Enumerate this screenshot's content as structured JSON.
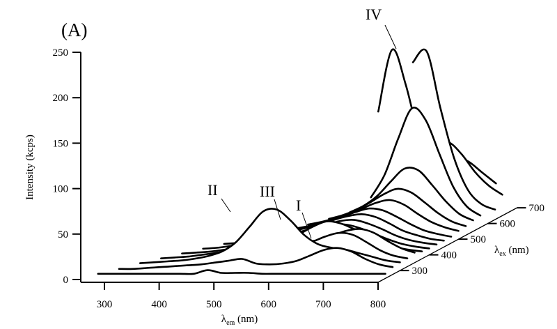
{
  "chart_data": {
    "type": "line",
    "style": "3d-waterfall",
    "panel_label": "(A)",
    "xlabel": {
      "main": "λ",
      "sub": "em",
      "unit": " (nm)"
    },
    "ylabel": "Intensity (kcps)",
    "zlabel": {
      "main": "λ",
      "sub": "ex",
      "unit": " (nm)"
    },
    "xlim": [
      250,
      800
    ],
    "ylim": [
      0,
      250
    ],
    "zlim": [
      225,
      700
    ],
    "xticks": [
      300,
      400,
      500,
      600,
      700,
      800
    ],
    "yticks": [
      0,
      50,
      100,
      150,
      200,
      250
    ],
    "zticks": [
      300,
      400,
      500,
      600,
      700
    ],
    "grid": false,
    "line_color": "#000000",
    "em_step": 25,
    "peak_labels": [
      "I",
      "II",
      "III",
      "IV"
    ],
    "series": [
      {
        "ex": 250,
        "em_start": 275,
        "values": [
          2,
          2,
          2,
          2,
          2,
          2,
          2,
          2,
          6,
          3,
          3,
          3,
          2,
          2,
          2,
          2,
          2,
          2,
          2,
          2,
          2,
          2
        ]
      },
      {
        "ex": 275,
        "em_start": 300,
        "values": [
          3,
          3,
          4,
          5,
          6,
          7,
          8,
          10,
          12,
          14,
          9,
          8,
          9,
          12,
          18,
          24,
          26,
          22,
          14,
          8,
          5
        ]
      },
      {
        "ex": 300,
        "em_start": 325,
        "values": [
          5,
          6,
          7,
          8,
          10,
          13,
          18,
          28,
          45,
          62,
          64,
          52,
          36,
          26,
          22,
          20,
          16,
          12,
          8,
          6
        ]
      },
      {
        "ex": 325,
        "em_start": 350,
        "values": [
          6,
          7,
          8,
          10,
          12,
          15,
          20,
          24,
          25,
          23,
          20,
          24,
          30,
          34,
          32,
          24,
          15,
          9,
          6
        ]
      },
      {
        "ex": 350,
        "em_start": 375,
        "values": [
          7,
          8,
          9,
          11,
          13,
          16,
          19,
          21,
          21,
          20,
          22,
          27,
          32,
          34,
          30,
          21,
          13,
          8
        ]
      },
      {
        "ex": 375,
        "em_start": 400,
        "values": [
          8,
          9,
          11,
          13,
          15,
          17,
          19,
          24,
          32,
          38,
          36,
          30,
          24,
          16,
          10,
          7,
          5
        ]
      },
      {
        "ex": 400,
        "em_start": 425,
        "values": [
          9,
          10,
          12,
          14,
          16,
          18,
          22,
          26,
          30,
          30,
          26,
          20,
          14,
          9,
          6,
          4
        ]
      },
      {
        "ex": 425,
        "em_start": 450,
        "values": [
          10,
          11,
          13,
          15,
          18,
          22,
          26,
          30,
          31,
          27,
          21,
          14,
          9,
          6,
          4
        ]
      },
      {
        "ex": 450,
        "em_start": 475,
        "values": [
          11,
          13,
          15,
          18,
          22,
          27,
          31,
          33,
          30,
          23,
          15,
          10,
          6,
          4
        ]
      },
      {
        "ex": 475,
        "em_start": 500,
        "values": [
          12,
          14,
          17,
          21,
          26,
          31,
          35,
          33,
          26,
          18,
          11,
          7,
          4
        ]
      },
      {
        "ex": 500,
        "em_start": 525,
        "values": [
          13,
          16,
          20,
          25,
          31,
          37,
          40,
          35,
          25,
          16,
          10,
          6
        ]
      },
      {
        "ex": 525,
        "em_start": 550,
        "values": [
          15,
          19,
          25,
          33,
          42,
          48,
          44,
          33,
          21,
          12,
          7
        ]
      },
      {
        "ex": 550,
        "em_start": 575,
        "values": [
          18,
          25,
          36,
          52,
          66,
          64,
          48,
          30,
          16,
          9
        ]
      },
      {
        "ex": 575,
        "em_start": 600,
        "values": [
          30,
          55,
          95,
          128,
          115,
          78,
          42,
          20,
          10
        ]
      },
      {
        "ex": 600,
        "em_start": 600,
        "values": [
          120,
          188,
          150,
          90,
          45,
          20,
          10,
          6
        ]
      },
      {
        "ex": 625,
        "em_start": 650,
        "values": [
          170,
          182,
          120,
          65,
          30,
          14,
          8
        ]
      },
      {
        "ex": 650,
        "em_start": 675,
        "values": [
          72,
          78,
          65,
          45,
          30,
          20
        ]
      },
      {
        "ex": 675,
        "em_start": 700,
        "values": [
          58,
          52,
          40,
          28
        ]
      }
    ]
  }
}
